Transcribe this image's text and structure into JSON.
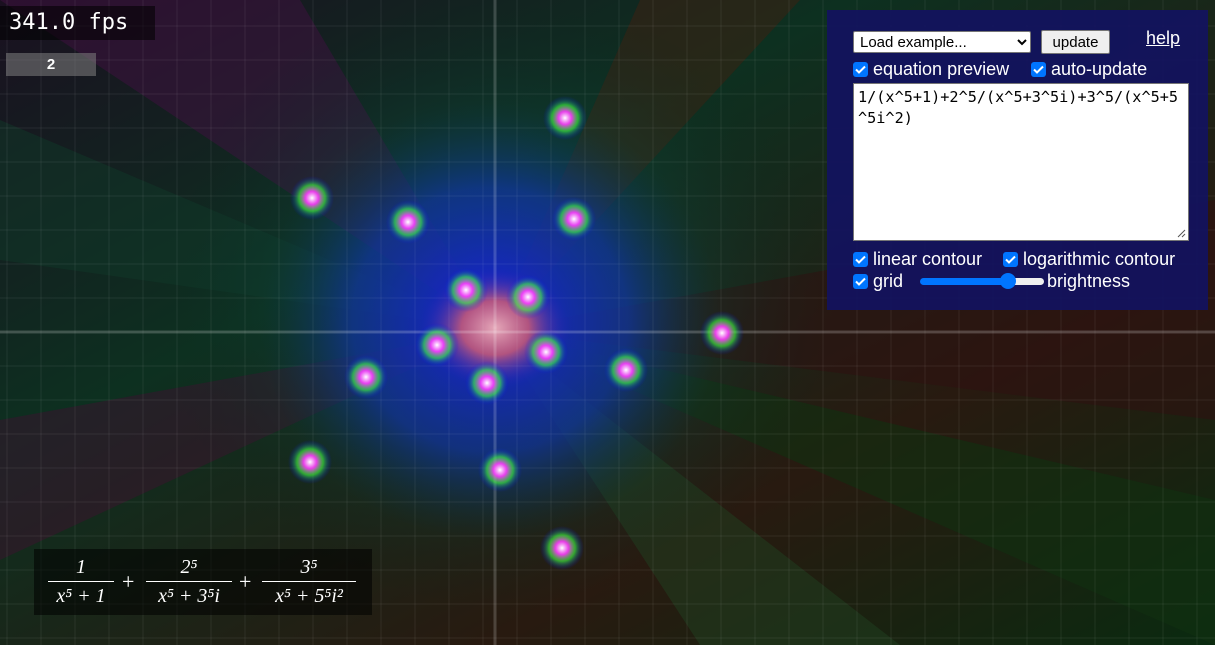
{
  "fps": {
    "text": "341.0 fps"
  },
  "counter": {
    "text": "2"
  },
  "panel": {
    "example_select": {
      "selected": "Load example...",
      "options": [
        "Load example..."
      ]
    },
    "update_label": "update",
    "help_label": "help",
    "equation_preview": {
      "label": "equation preview",
      "checked": true
    },
    "auto_update": {
      "label": "auto-update",
      "checked": true
    },
    "equation_text": "1/(x^5+1)+2^5/(x^5+3^5i)+3^5/(x^5+5^5i^2)",
    "linear_contour": {
      "label": "linear contour",
      "checked": true
    },
    "logarithmic_contour": {
      "label": "logarithmic contour",
      "checked": true
    },
    "grid": {
      "label": "grid",
      "checked": true
    },
    "brightness": {
      "label": "brightness",
      "value": 0.72
    }
  },
  "formula": {
    "terms": [
      {
        "num": "1",
        "den": "x⁵ + 1"
      },
      {
        "num": "2⁵",
        "den": "x⁵ + 3⁵i"
      },
      {
        "num": "3⁵",
        "den": "x⁵ + 5⁵i²"
      }
    ],
    "operator": "+"
  },
  "colors": {
    "panel_bg": "#121260",
    "accent": "#0075ff",
    "center_glow": "#e8a0a8"
  }
}
